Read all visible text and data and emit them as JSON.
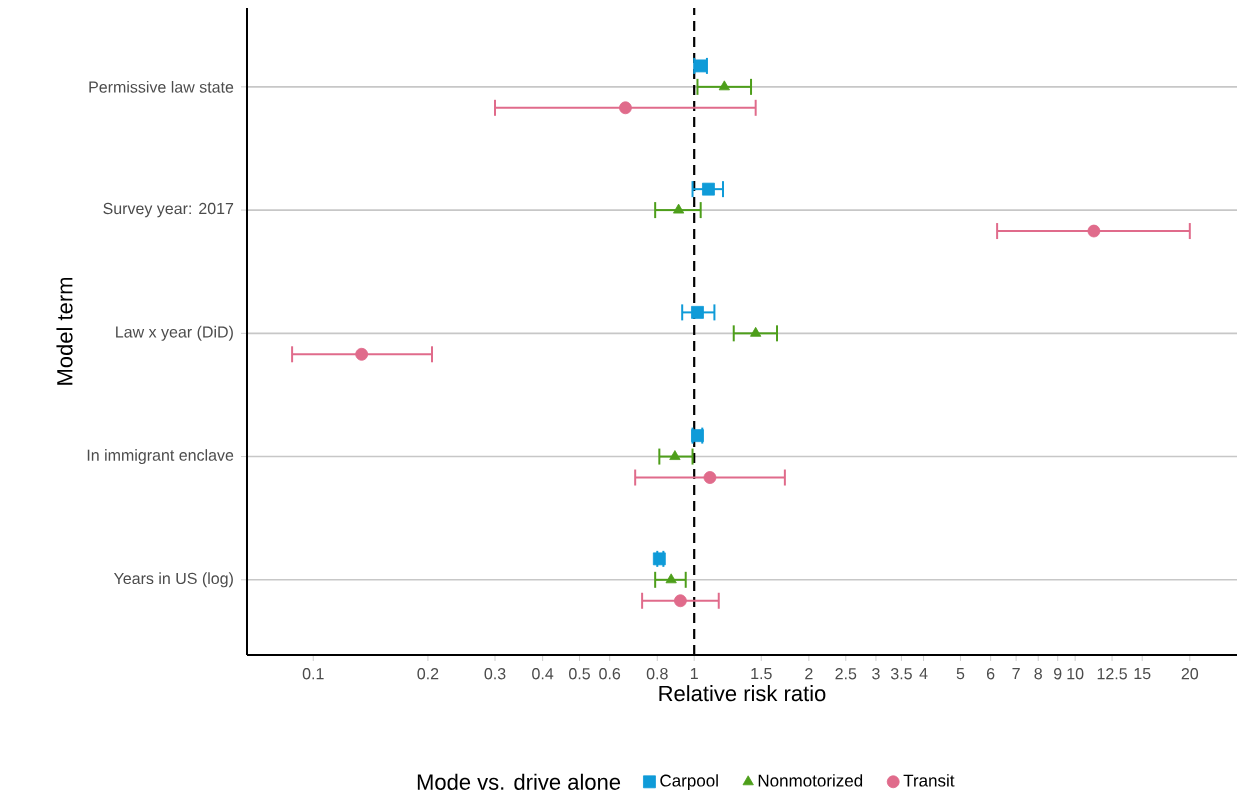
{
  "chart_data": {
    "type": "scatter",
    "orientation": "horizontal",
    "xlabel": "Relative risk ratio",
    "ylabel": "Model term",
    "legend_title": "Mode vs. drive alone",
    "categories": [
      "Permissive law state",
      "Survey year: 2017",
      "Law x year (DiD)",
      "In immigrant enclave",
      "Years in US (log)"
    ],
    "series": [
      {
        "name": "Carpool",
        "color": "#0f9bd8",
        "marker": "square",
        "values": [
          1.04,
          1.09,
          1.02,
          1.02,
          0.81
        ],
        "errors": [
          [
            1.0,
            1.08
          ],
          [
            0.99,
            1.19
          ],
          [
            0.93,
            1.13
          ],
          [
            0.99,
            1.05
          ],
          [
            0.8,
            0.83
          ]
        ]
      },
      {
        "name": "Nonmotorized",
        "color": "#4d9e1a",
        "marker": "triangle",
        "values": [
          1.2,
          0.91,
          1.45,
          0.89,
          0.87
        ],
        "errors": [
          [
            1.02,
            1.41
          ],
          [
            0.79,
            1.04
          ],
          [
            1.27,
            1.65
          ],
          [
            0.81,
            0.99
          ],
          [
            0.79,
            0.95
          ]
        ]
      },
      {
        "name": "Transit",
        "color": "#e06b8b",
        "marker": "circle",
        "values": [
          0.66,
          11.2,
          0.134,
          1.1,
          0.92
        ],
        "errors": [
          [
            0.3,
            1.45
          ],
          [
            6.24,
            20
          ],
          [
            0.088,
            0.205
          ],
          [
            0.7,
            1.73
          ],
          [
            0.73,
            1.16
          ]
        ]
      }
    ],
    "xlim": [
      0.067,
      26.6
    ],
    "xticks": [
      0.1,
      0.2,
      0.3,
      0.4,
      0.5,
      0.6,
      0.8,
      1,
      1.5,
      2,
      2.5,
      3,
      3.5,
      4,
      5,
      6,
      7,
      8,
      9,
      10,
      12.5,
      15,
      20
    ],
    "log": "x",
    "grid": "y",
    "legend": "bottom",
    "ref_lines": [
      {
        "axis": "x",
        "value": 1,
        "line_style": "dashed",
        "color": "#000000"
      }
    ]
  }
}
